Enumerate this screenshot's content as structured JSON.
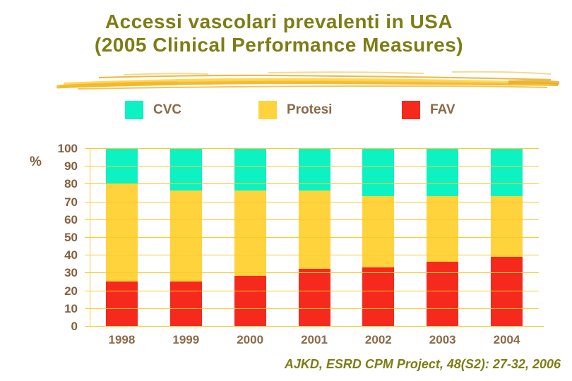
{
  "title": {
    "line1": "Accessi vascolari prevalenti in USA",
    "line2": "(2005 Clinical Performance Measures)"
  },
  "legend": [
    {
      "label": "CVC",
      "color": "#0cf2c2"
    },
    {
      "label": "Protesi",
      "color": "#ffd33c"
    },
    {
      "label": "FAV",
      "color": "#f52a1d"
    }
  ],
  "chart_data": {
    "type": "bar",
    "stacked": true,
    "categories": [
      "1998",
      "1999",
      "2000",
      "2001",
      "2002",
      "2003",
      "2004"
    ],
    "series": [
      {
        "name": "FAV",
        "color": "#f52a1d",
        "values": [
          25,
          25,
          28,
          32,
          33,
          36,
          39
        ]
      },
      {
        "name": "Protesi",
        "color": "#ffd33c",
        "values": [
          55,
          51,
          48,
          44,
          40,
          37,
          34
        ]
      },
      {
        "name": "CVC",
        "color": "#0cf2c2",
        "values": [
          20,
          24,
          24,
          24,
          27,
          27,
          27
        ]
      }
    ],
    "title": "Accessi vascolari prevalenti in USA (2005 Clinical Performance Measures)",
    "xlabel": "",
    "ylabel": "%",
    "ylim": [
      0,
      100
    ],
    "yticks": [
      0,
      10,
      20,
      30,
      40,
      50,
      60,
      70,
      80,
      90,
      100
    ],
    "grid": true,
    "legend_position": "top"
  },
  "citation": "AJKD, ESRD CPM Project, 48(S2): 27-32, 2006",
  "colors": {
    "title_text": "#7d7d15",
    "axis_text": "#82603f",
    "legend_text": "#8a6b49",
    "gridline": "#ffc72f",
    "brush_stroke": "#f2b829",
    "background": "#ffffff"
  }
}
